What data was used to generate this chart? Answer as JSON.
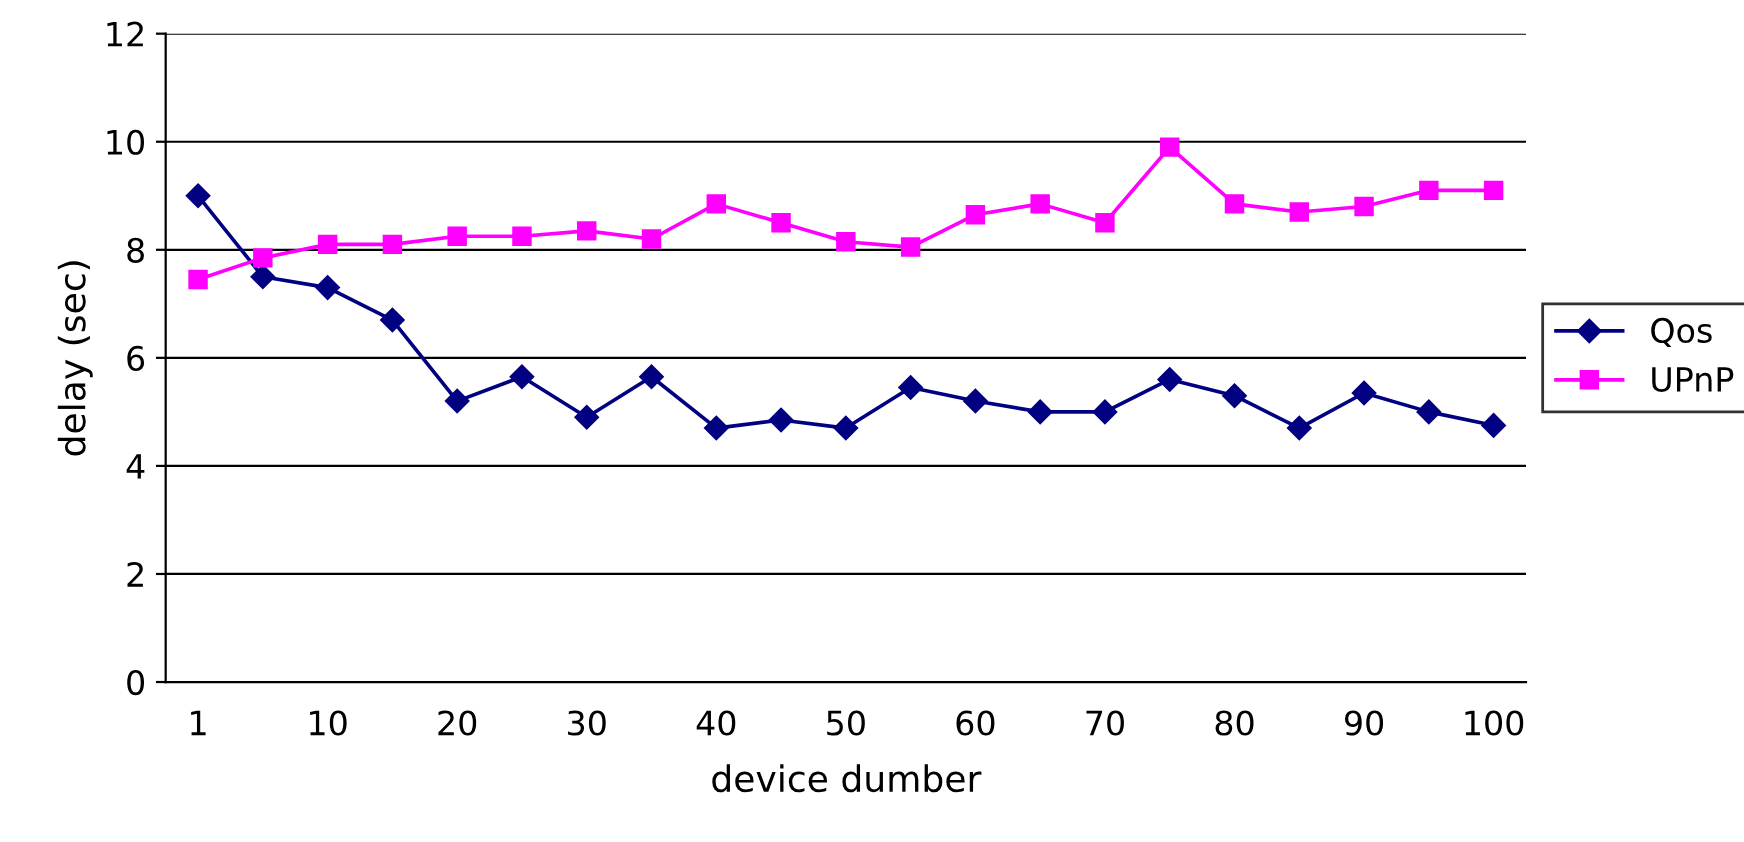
{
  "chart_data": {
    "type": "line",
    "xlabel": "device dumber",
    "ylabel": "delay (sec)",
    "categories": [
      "1",
      null,
      "10",
      null,
      "20",
      null,
      "30",
      null,
      "40",
      null,
      "50",
      null,
      "60",
      null,
      "70",
      null,
      "80",
      null,
      "90",
      null,
      "100"
    ],
    "series": [
      {
        "name": "Qos",
        "color": "#000080",
        "marker": "diamond",
        "values": [
          9.0,
          7.5,
          7.3,
          6.7,
          5.2,
          5.65,
          4.9,
          5.65,
          4.7,
          4.85,
          4.7,
          5.45,
          5.2,
          5.0,
          5.0,
          5.6,
          5.3,
          4.7,
          5.35,
          5.0,
          4.75
        ]
      },
      {
        "name": "UPnP",
        "color": "#ff00ff",
        "marker": "square",
        "values": [
          7.45,
          7.85,
          8.1,
          8.1,
          8.25,
          8.25,
          8.35,
          8.2,
          8.85,
          8.5,
          8.15,
          8.05,
          8.65,
          8.85,
          8.5,
          9.9,
          8.85,
          8.7,
          8.8,
          9.1,
          9.1
        ]
      }
    ],
    "ylim": [
      0,
      12
    ],
    "yticks": [
      0,
      2,
      4,
      6,
      8,
      10,
      12
    ],
    "grid": "y",
    "legend": "right",
    "line_style": "solid"
  }
}
